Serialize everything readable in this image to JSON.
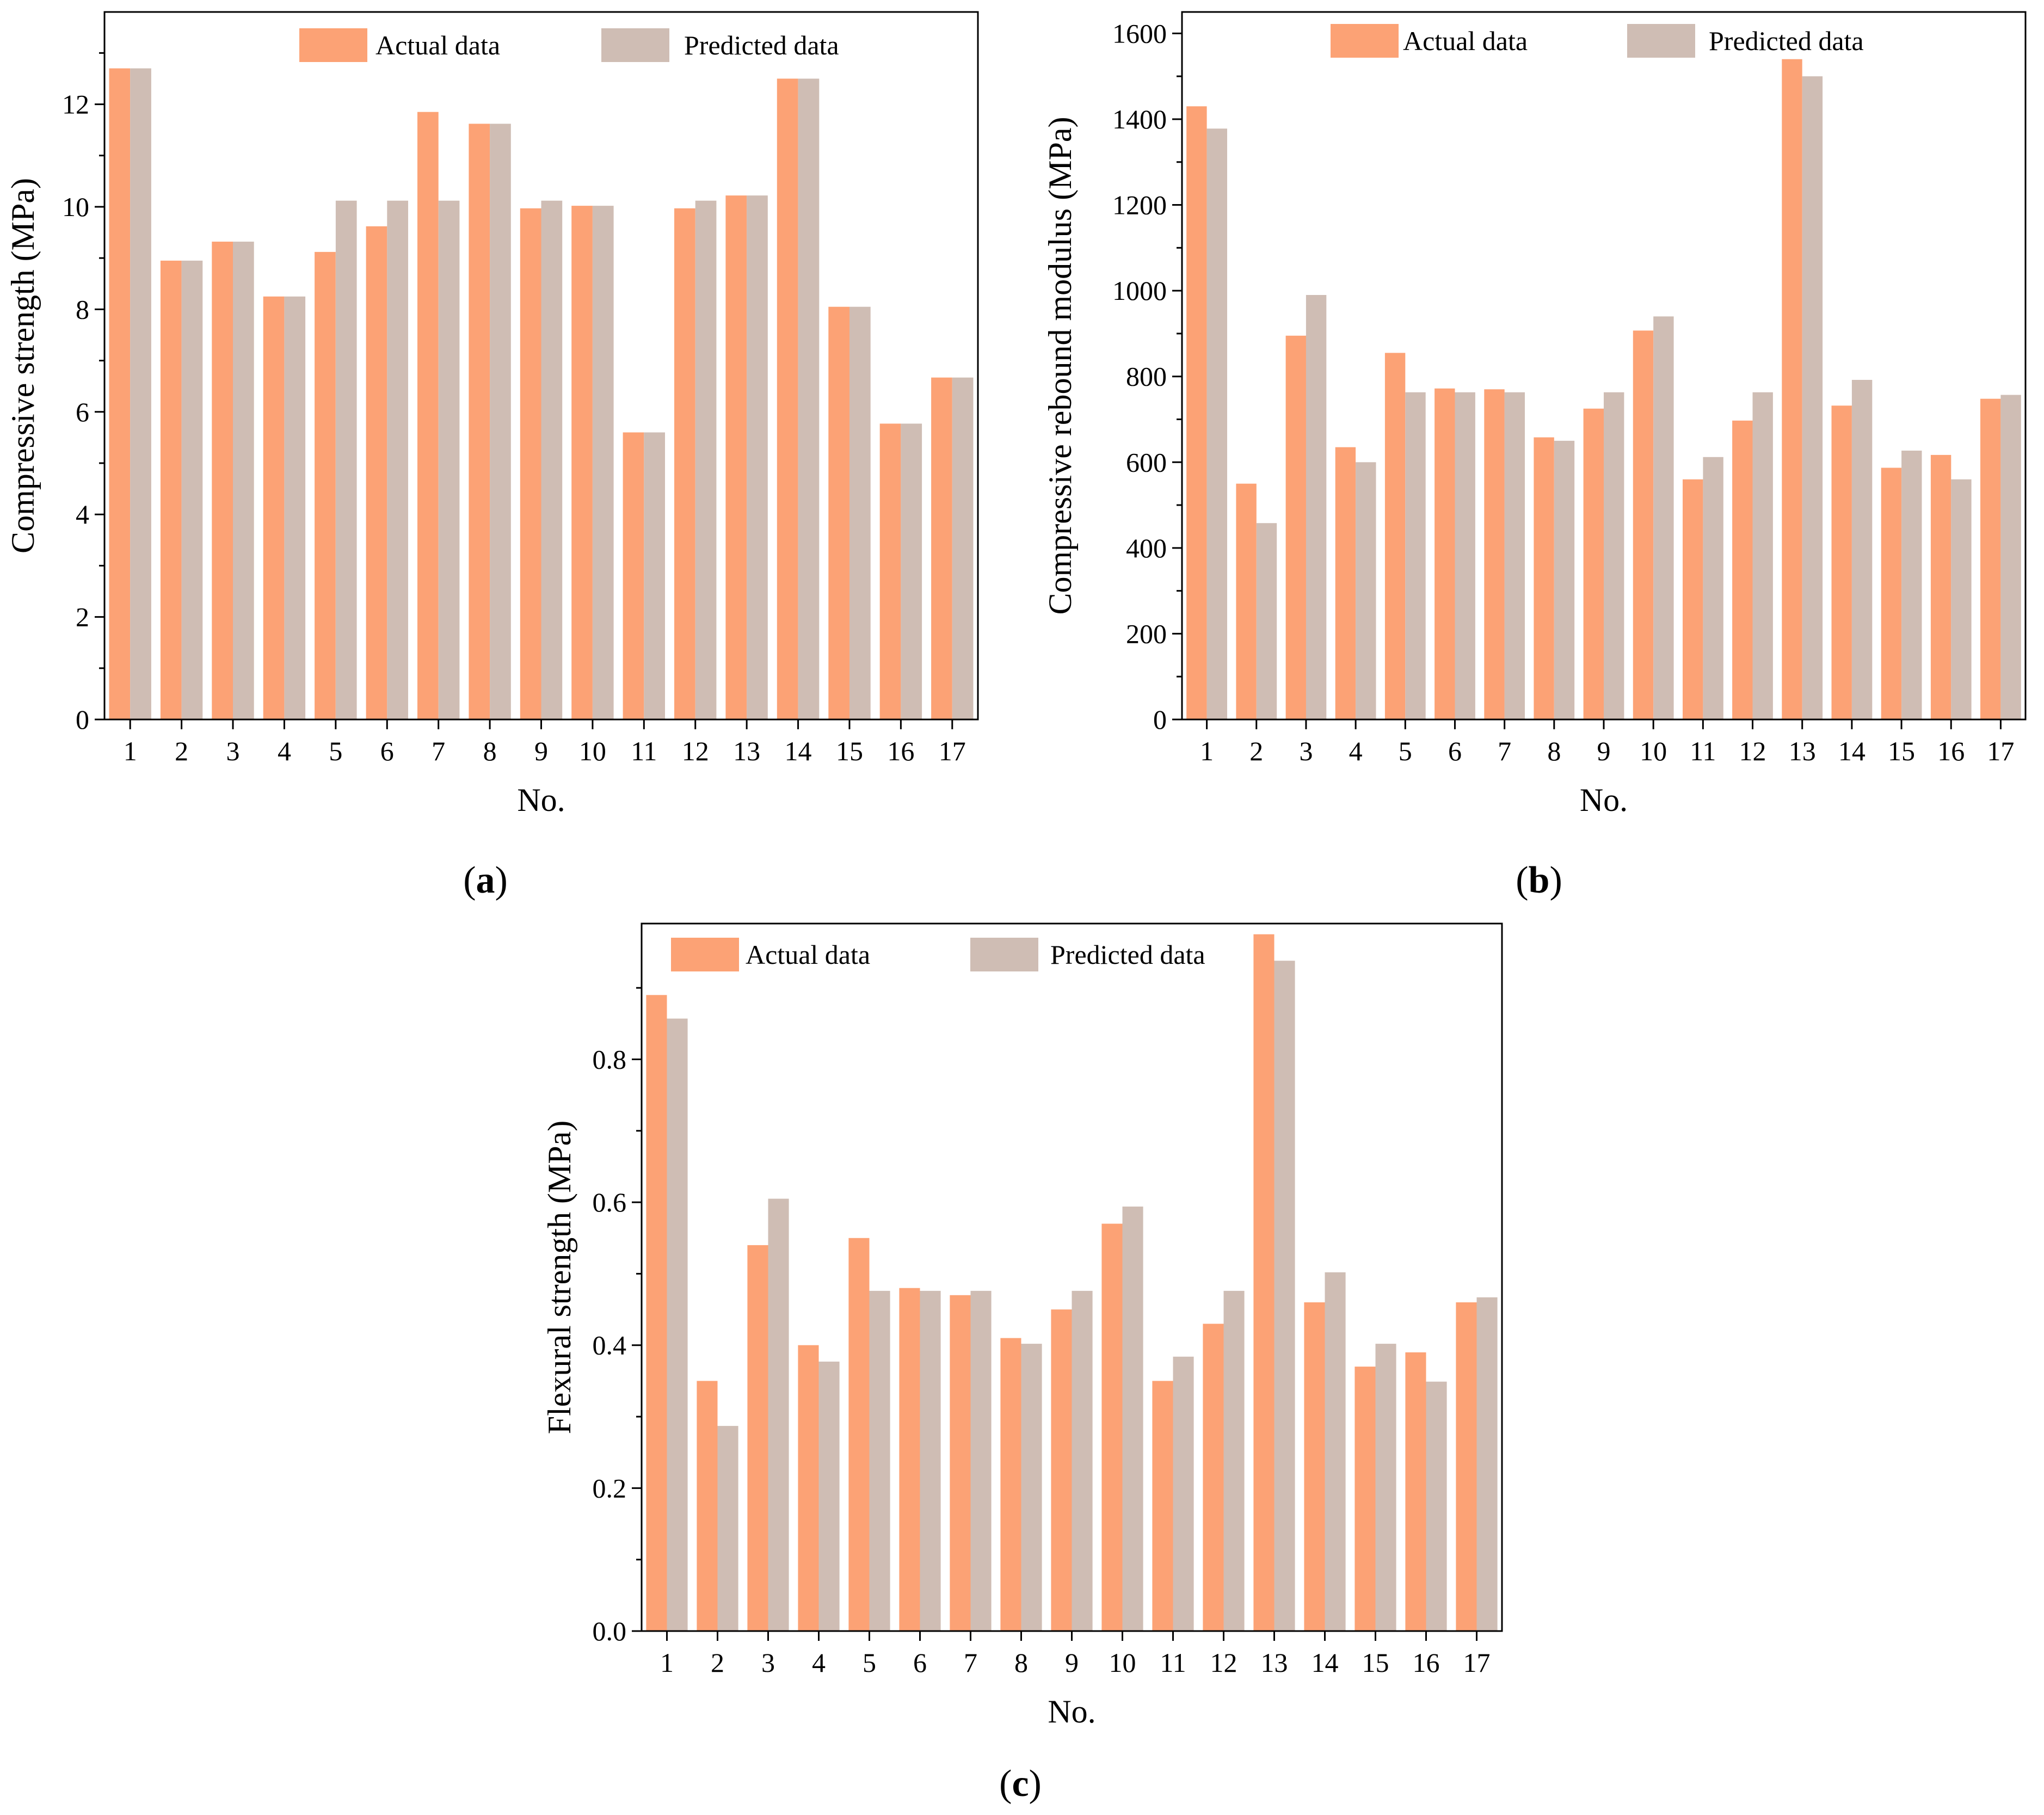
{
  "colors": {
    "actual": "#fca275",
    "predicted": "#cfbdb4",
    "axis": "#000000",
    "background": "#ffffff"
  },
  "chart_data": [
    {
      "id": "a",
      "type": "bar",
      "caption": "(a)",
      "caption_letter": "a",
      "title": "",
      "xlabel": "No.",
      "ylabel": "Compressive strength (MPa)",
      "ylim": [
        0,
        13.8
      ],
      "yticks": [
        0,
        2,
        4,
        6,
        8,
        10,
        12
      ],
      "ytick_labels": [
        "0",
        "2",
        "4",
        "6",
        "8",
        "10",
        "12"
      ],
      "grid": false,
      "legend_position": "top",
      "categories": [
        "1",
        "2",
        "3",
        "4",
        "5",
        "6",
        "7",
        "8",
        "9",
        "10",
        "11",
        "12",
        "13",
        "14",
        "15",
        "16",
        "17"
      ],
      "series": [
        {
          "name": "Actual data",
          "values": [
            12.7,
            8.95,
            9.32,
            8.25,
            9.12,
            9.62,
            11.85,
            11.62,
            9.97,
            10.02,
            5.6,
            9.97,
            10.22,
            12.5,
            8.05,
            5.77,
            6.67
          ]
        },
        {
          "name": "Predicted data",
          "values": [
            12.7,
            8.95,
            9.32,
            8.25,
            10.12,
            10.12,
            10.12,
            11.62,
            10.12,
            10.02,
            5.6,
            10.12,
            10.22,
            12.5,
            8.05,
            5.77,
            6.67
          ]
        }
      ]
    },
    {
      "id": "b",
      "type": "bar",
      "caption": "(b)",
      "caption_letter": "b",
      "title": "",
      "xlabel": "No.",
      "ylabel": "Compressive rebound modulus (MPa)",
      "ylim": [
        0,
        1650
      ],
      "yticks": [
        0,
        200,
        400,
        600,
        800,
        1000,
        1200,
        1400,
        1600
      ],
      "ytick_labels": [
        "0",
        "200",
        "400",
        "600",
        "800",
        "1000",
        "1200",
        "1400",
        "1600"
      ],
      "grid": false,
      "legend_position": "top",
      "categories": [
        "1",
        "2",
        "3",
        "4",
        "5",
        "6",
        "7",
        "8",
        "9",
        "10",
        "11",
        "12",
        "13",
        "14",
        "15",
        "16",
        "17"
      ],
      "series": [
        {
          "name": "Actual data",
          "values": [
            1430,
            550,
            895,
            635,
            855,
            772,
            770,
            658,
            725,
            907,
            560,
            697,
            1540,
            732,
            587,
            617,
            748
          ]
        },
        {
          "name": "Predicted data",
          "values": [
            1378,
            458,
            990,
            600,
            763,
            763,
            763,
            650,
            763,
            940,
            612,
            763,
            1500,
            792,
            627,
            560,
            757
          ]
        }
      ]
    },
    {
      "id": "c",
      "type": "bar",
      "caption": "(c)",
      "caption_letter": "c",
      "title": "",
      "xlabel": "No.",
      "ylabel": "Flexural strength (MPa)",
      "ylim": [
        0,
        0.99
      ],
      "yticks": [
        0.0,
        0.2,
        0.4,
        0.6,
        0.8
      ],
      "ytick_labels": [
        "0.0",
        "0.2",
        "0.4",
        "0.6",
        "0.8"
      ],
      "grid": false,
      "legend_position": "top",
      "categories": [
        "1",
        "2",
        "3",
        "4",
        "5",
        "6",
        "7",
        "8",
        "9",
        "10",
        "11",
        "12",
        "13",
        "14",
        "15",
        "16",
        "17"
      ],
      "series": [
        {
          "name": "Actual data",
          "values": [
            0.89,
            0.35,
            0.54,
            0.4,
            0.55,
            0.48,
            0.47,
            0.41,
            0.45,
            0.57,
            0.35,
            0.43,
            0.975,
            0.46,
            0.37,
            0.39,
            0.46
          ]
        },
        {
          "name": "Predicted data",
          "values": [
            0.857,
            0.287,
            0.605,
            0.377,
            0.476,
            0.476,
            0.476,
            0.402,
            0.476,
            0.594,
            0.384,
            0.476,
            0.938,
            0.502,
            0.402,
            0.349,
            0.467
          ]
        }
      ]
    }
  ]
}
